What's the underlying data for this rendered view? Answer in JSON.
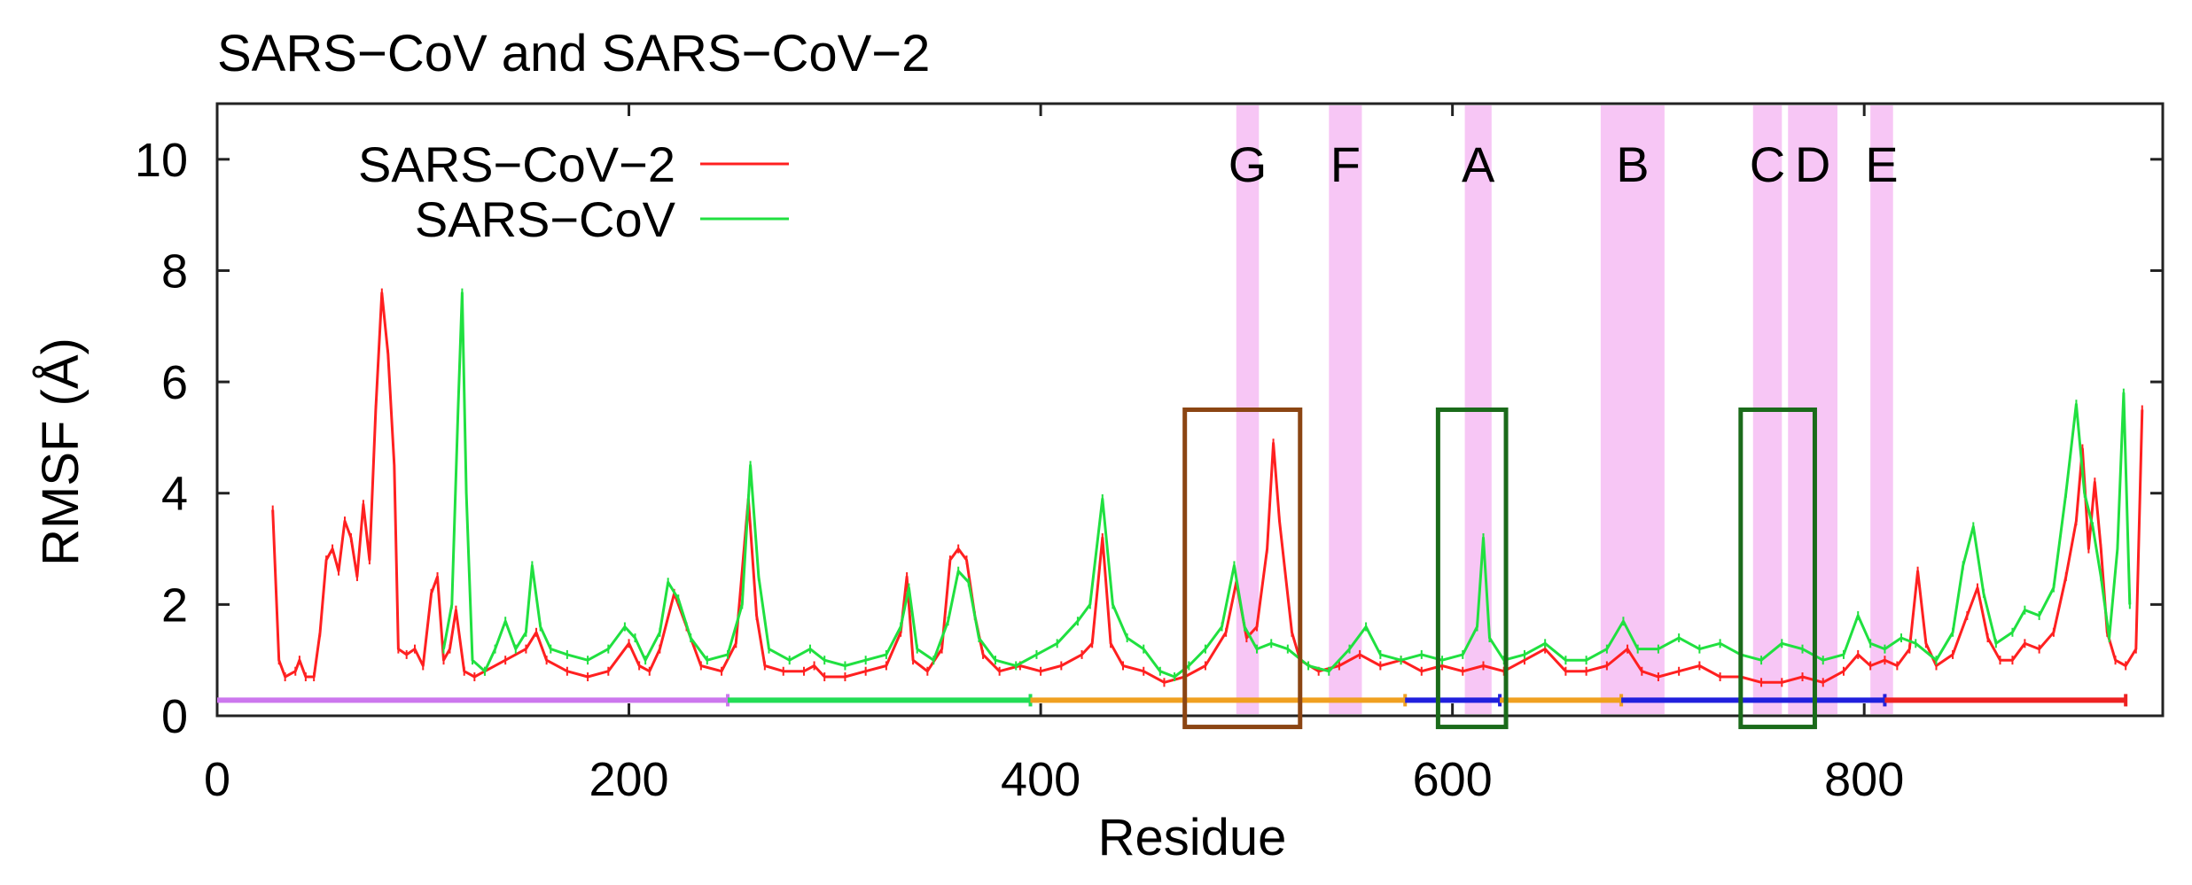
{
  "chart_data": {
    "type": "line",
    "title": "SARS−CoV and SARS−CoV−2",
    "xlabel": "Residue",
    "ylabel": "RMSF (Å)",
    "xlim": [
      0,
      945
    ],
    "ylim": [
      0,
      11
    ],
    "xticks": [
      0,
      200,
      400,
      600,
      800
    ],
    "xtick_labels": [
      "0",
      "200",
      "400",
      "600",
      "800"
    ],
    "yticks": [
      0,
      2,
      4,
      6,
      8,
      10
    ],
    "ytick_labels": [
      "0",
      "2",
      "4",
      "6",
      "8",
      "10"
    ],
    "grid": false,
    "legend_position": "top-left",
    "series": [
      {
        "name": "SARS−CoV−2",
        "color": "#ff2020",
        "points": [
          [
            27,
            3.7
          ],
          [
            30,
            1.0
          ],
          [
            33,
            0.7
          ],
          [
            38,
            0.8
          ],
          [
            40,
            1.0
          ],
          [
            43,
            0.7
          ],
          [
            47,
            0.7
          ],
          [
            50,
            1.5
          ],
          [
            53,
            2.8
          ],
          [
            56,
            3.0
          ],
          [
            59,
            2.6
          ],
          [
            62,
            3.5
          ],
          [
            65,
            3.2
          ],
          [
            68,
            2.5
          ],
          [
            71,
            3.8
          ],
          [
            74,
            2.8
          ],
          [
            77,
            5.5
          ],
          [
            80,
            7.6
          ],
          [
            83,
            6.5
          ],
          [
            86,
            4.5
          ],
          [
            88,
            1.2
          ],
          [
            92,
            1.1
          ],
          [
            96,
            1.2
          ],
          [
            100,
            0.9
          ],
          [
            104,
            2.2
          ],
          [
            107,
            2.5
          ],
          [
            110,
            1.0
          ],
          [
            113,
            1.2
          ],
          [
            116,
            1.9
          ],
          [
            120,
            0.8
          ],
          [
            125,
            0.7
          ],
          [
            130,
            0.8
          ],
          [
            140,
            1.0
          ],
          [
            150,
            1.2
          ],
          [
            155,
            1.5
          ],
          [
            160,
            1.0
          ],
          [
            170,
            0.8
          ],
          [
            180,
            0.7
          ],
          [
            190,
            0.8
          ],
          [
            200,
            1.3
          ],
          [
            205,
            0.9
          ],
          [
            210,
            0.8
          ],
          [
            215,
            1.2
          ],
          [
            222,
            2.2
          ],
          [
            228,
            1.6
          ],
          [
            235,
            0.9
          ],
          [
            245,
            0.8
          ],
          [
            252,
            1.3
          ],
          [
            258,
            3.9
          ],
          [
            262,
            1.8
          ],
          [
            266,
            0.9
          ],
          [
            275,
            0.8
          ],
          [
            285,
            0.8
          ],
          [
            290,
            0.9
          ],
          [
            295,
            0.7
          ],
          [
            305,
            0.7
          ],
          [
            315,
            0.8
          ],
          [
            325,
            0.9
          ],
          [
            332,
            1.5
          ],
          [
            335,
            2.5
          ],
          [
            338,
            1.0
          ],
          [
            345,
            0.8
          ],
          [
            352,
            1.2
          ],
          [
            356,
            2.8
          ],
          [
            360,
            3.0
          ],
          [
            364,
            2.8
          ],
          [
            368,
            1.8
          ],
          [
            372,
            1.1
          ],
          [
            380,
            0.8
          ],
          [
            390,
            0.9
          ],
          [
            400,
            0.8
          ],
          [
            410,
            0.9
          ],
          [
            420,
            1.1
          ],
          [
            425,
            1.3
          ],
          [
            430,
            3.2
          ],
          [
            434,
            1.3
          ],
          [
            440,
            0.9
          ],
          [
            450,
            0.8
          ],
          [
            460,
            0.6
          ],
          [
            470,
            0.7
          ],
          [
            480,
            0.9
          ],
          [
            490,
            1.5
          ],
          [
            495,
            2.4
          ],
          [
            500,
            1.4
          ],
          [
            505,
            1.6
          ],
          [
            510,
            3.0
          ],
          [
            513,
            4.9
          ],
          [
            516,
            3.5
          ],
          [
            519,
            2.5
          ],
          [
            522,
            1.5
          ],
          [
            526,
            1.0
          ],
          [
            535,
            0.8
          ],
          [
            545,
            0.9
          ],
          [
            555,
            1.1
          ],
          [
            565,
            0.9
          ],
          [
            575,
            1.0
          ],
          [
            585,
            0.8
          ],
          [
            595,
            0.9
          ],
          [
            605,
            0.8
          ],
          [
            615,
            0.9
          ],
          [
            625,
            0.8
          ],
          [
            635,
            1.0
          ],
          [
            645,
            1.2
          ],
          [
            655,
            0.8
          ],
          [
            665,
            0.8
          ],
          [
            675,
            0.9
          ],
          [
            685,
            1.2
          ],
          [
            692,
            0.8
          ],
          [
            700,
            0.7
          ],
          [
            710,
            0.8
          ],
          [
            720,
            0.9
          ],
          [
            730,
            0.7
          ],
          [
            740,
            0.7
          ],
          [
            750,
            0.6
          ],
          [
            760,
            0.6
          ],
          [
            770,
            0.7
          ],
          [
            780,
            0.6
          ],
          [
            790,
            0.8
          ],
          [
            797,
            1.1
          ],
          [
            803,
            0.9
          ],
          [
            810,
            1.0
          ],
          [
            816,
            0.9
          ],
          [
            822,
            1.2
          ],
          [
            826,
            2.6
          ],
          [
            830,
            1.3
          ],
          [
            835,
            0.9
          ],
          [
            843,
            1.1
          ],
          [
            850,
            1.8
          ],
          [
            855,
            2.3
          ],
          [
            860,
            1.4
          ],
          [
            866,
            1.0
          ],
          [
            872,
            1.0
          ],
          [
            878,
            1.3
          ],
          [
            885,
            1.2
          ],
          [
            892,
            1.5
          ],
          [
            898,
            2.5
          ],
          [
            903,
            3.5
          ],
          [
            906,
            4.8
          ],
          [
            909,
            3.0
          ],
          [
            912,
            4.2
          ],
          [
            915,
            3.0
          ],
          [
            918,
            1.5
          ],
          [
            922,
            1.0
          ],
          [
            927,
            0.9
          ],
          [
            932,
            1.2
          ],
          [
            935,
            5.5
          ]
        ]
      },
      {
        "name": "SARS−CoV",
        "color": "#20e040",
        "points": [
          [
            110,
            1.2
          ],
          [
            114,
            2.0
          ],
          [
            117,
            5.5
          ],
          [
            119,
            7.6
          ],
          [
            121,
            4.0
          ],
          [
            124,
            1.0
          ],
          [
            130,
            0.8
          ],
          [
            135,
            1.2
          ],
          [
            140,
            1.7
          ],
          [
            145,
            1.2
          ],
          [
            150,
            1.5
          ],
          [
            153,
            2.7
          ],
          [
            157,
            1.6
          ],
          [
            162,
            1.2
          ],
          [
            170,
            1.1
          ],
          [
            180,
            1.0
          ],
          [
            190,
            1.2
          ],
          [
            198,
            1.6
          ],
          [
            203,
            1.4
          ],
          [
            208,
            1.0
          ],
          [
            215,
            1.5
          ],
          [
            219,
            2.4
          ],
          [
            224,
            2.1
          ],
          [
            230,
            1.4
          ],
          [
            238,
            1.0
          ],
          [
            248,
            1.1
          ],
          [
            255,
            2.0
          ],
          [
            259,
            4.5
          ],
          [
            263,
            2.5
          ],
          [
            268,
            1.2
          ],
          [
            278,
            1.0
          ],
          [
            288,
            1.2
          ],
          [
            295,
            1.0
          ],
          [
            305,
            0.9
          ],
          [
            315,
            1.0
          ],
          [
            325,
            1.1
          ],
          [
            332,
            1.6
          ],
          [
            336,
            2.3
          ],
          [
            340,
            1.2
          ],
          [
            348,
            1.0
          ],
          [
            355,
            1.7
          ],
          [
            360,
            2.6
          ],
          [
            365,
            2.4
          ],
          [
            370,
            1.4
          ],
          [
            378,
            1.0
          ],
          [
            388,
            0.9
          ],
          [
            398,
            1.1
          ],
          [
            408,
            1.3
          ],
          [
            418,
            1.7
          ],
          [
            424,
            2.0
          ],
          [
            430,
            3.9
          ],
          [
            435,
            2.0
          ],
          [
            442,
            1.4
          ],
          [
            450,
            1.2
          ],
          [
            458,
            0.8
          ],
          [
            465,
            0.7
          ],
          [
            472,
            0.9
          ],
          [
            480,
            1.2
          ],
          [
            488,
            1.6
          ],
          [
            494,
            2.7
          ],
          [
            499,
            1.6
          ],
          [
            505,
            1.2
          ],
          [
            512,
            1.3
          ],
          [
            520,
            1.2
          ],
          [
            530,
            0.9
          ],
          [
            540,
            0.8
          ],
          [
            550,
            1.2
          ],
          [
            558,
            1.6
          ],
          [
            565,
            1.1
          ],
          [
            575,
            1.0
          ],
          [
            585,
            1.1
          ],
          [
            595,
            1.0
          ],
          [
            605,
            1.1
          ],
          [
            612,
            1.6
          ],
          [
            615,
            3.2
          ],
          [
            618,
            1.4
          ],
          [
            625,
            1.0
          ],
          [
            635,
            1.1
          ],
          [
            645,
            1.3
          ],
          [
            655,
            1.0
          ],
          [
            665,
            1.0
          ],
          [
            675,
            1.2
          ],
          [
            683,
            1.7
          ],
          [
            690,
            1.2
          ],
          [
            700,
            1.2
          ],
          [
            710,
            1.4
          ],
          [
            720,
            1.2
          ],
          [
            730,
            1.3
          ],
          [
            740,
            1.1
          ],
          [
            750,
            1.0
          ],
          [
            760,
            1.3
          ],
          [
            770,
            1.2
          ],
          [
            780,
            1.0
          ],
          [
            790,
            1.1
          ],
          [
            797,
            1.8
          ],
          [
            803,
            1.3
          ],
          [
            810,
            1.2
          ],
          [
            818,
            1.4
          ],
          [
            825,
            1.3
          ],
          [
            835,
            1.0
          ],
          [
            843,
            1.5
          ],
          [
            848,
            2.7
          ],
          [
            853,
            3.4
          ],
          [
            858,
            2.2
          ],
          [
            864,
            1.3
          ],
          [
            872,
            1.5
          ],
          [
            878,
            1.9
          ],
          [
            885,
            1.8
          ],
          [
            892,
            2.3
          ],
          [
            898,
            4.0
          ],
          [
            903,
            5.6
          ],
          [
            907,
            4.0
          ],
          [
            911,
            3.4
          ],
          [
            915,
            2.5
          ],
          [
            919,
            1.4
          ],
          [
            923,
            3.0
          ],
          [
            926,
            5.8
          ],
          [
            929,
            2.0
          ]
        ]
      }
    ],
    "regions": [
      {
        "label": "G",
        "x0": 495,
        "x1": 506
      },
      {
        "label": "F",
        "x0": 540,
        "x1": 556
      },
      {
        "label": "A",
        "x0": 606,
        "x1": 619
      },
      {
        "label": "B",
        "x0": 672,
        "x1": 703
      },
      {
        "label": "C",
        "x0": 746,
        "x1": 760
      },
      {
        "label": "D",
        "x0": 763,
        "x1": 787
      },
      {
        "label": "E",
        "x0": 803,
        "x1": 814
      }
    ],
    "boxes": [
      {
        "color": "#8b4513",
        "x0": 470,
        "x1": 526,
        "y0": -0.2,
        "y1": 5.5
      },
      {
        "color": "#1a6b1a",
        "x0": 593,
        "x1": 626,
        "y0": -0.2,
        "y1": 5.5
      },
      {
        "color": "#1a6b1a",
        "x0": 740,
        "x1": 776,
        "y0": -0.2,
        "y1": 5.5
      }
    ],
    "domain_bar": {
      "y": 0.28,
      "segments": [
        {
          "x0": 0,
          "x1": 248,
          "color": "#cc77ee"
        },
        {
          "x0": 248,
          "x1": 395,
          "color": "#22dd55"
        },
        {
          "x0": 395,
          "x1": 577,
          "color": "#f0a020"
        },
        {
          "x0": 577,
          "x1": 623,
          "color": "#2020dd"
        },
        {
          "x0": 623,
          "x1": 682,
          "color": "#f0a020"
        },
        {
          "x0": 682,
          "x1": 810,
          "color": "#2020dd"
        },
        {
          "x0": 810,
          "x1": 927,
          "color": "#ee2222"
        }
      ]
    }
  }
}
